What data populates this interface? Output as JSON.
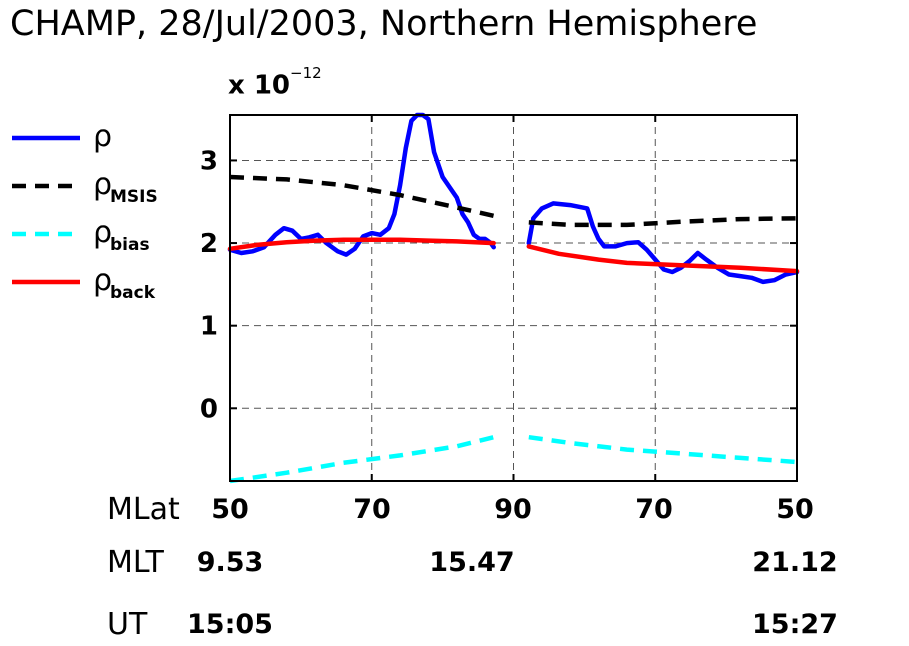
{
  "chart_data": {
    "type": "line",
    "title": "CHAMP, 28/Jul/2003, Northern Hemisphere",
    "y_multiplier": "x 10",
    "y_multiplier_exp": "−12",
    "ylim": [
      -0.88,
      3.55
    ],
    "yticks": [
      "0",
      "1",
      "2",
      "3"
    ],
    "xlim": [
      0,
      1
    ],
    "grid": true,
    "legend_position": "left",
    "legend": [
      {
        "symbol": "ρ",
        "sub": "",
        "color": "#0000ff",
        "dash": "solid"
      },
      {
        "symbol": "ρ",
        "sub": "MSIS",
        "color": "#000000",
        "dash": "dashed"
      },
      {
        "symbol": "ρ",
        "sub": "bias",
        "color": "#00ffff",
        "dash": "dashed"
      },
      {
        "symbol": "ρ",
        "sub": "back",
        "color": "#ff0000",
        "dash": "solid"
      }
    ],
    "mlat_ticks": [
      "50",
      "70",
      "90",
      "70",
      "50"
    ],
    "mlt_ticks": [
      "9.53",
      "15.47",
      "21.12"
    ],
    "ut_ticks": [
      "15:05",
      "15:27"
    ],
    "series": [
      {
        "key": "rho",
        "color": "#0000ff",
        "dash": "solid",
        "segments": [
          [
            [
              0.0,
              1.92
            ],
            [
              0.02,
              1.88
            ],
            [
              0.04,
              1.9
            ],
            [
              0.06,
              1.95
            ],
            [
              0.08,
              2.1
            ],
            [
              0.095,
              2.18
            ],
            [
              0.11,
              2.15
            ],
            [
              0.125,
              2.05
            ],
            [
              0.14,
              2.07
            ],
            [
              0.155,
              2.1
            ],
            [
              0.17,
              2.0
            ],
            [
              0.19,
              1.9
            ],
            [
              0.205,
              1.86
            ],
            [
              0.22,
              1.93
            ],
            [
              0.235,
              2.08
            ],
            [
              0.25,
              2.12
            ],
            [
              0.265,
              2.1
            ],
            [
              0.28,
              2.18
            ],
            [
              0.29,
              2.35
            ],
            [
              0.3,
              2.7
            ],
            [
              0.31,
              3.15
            ],
            [
              0.32,
              3.48
            ],
            [
              0.33,
              3.55
            ],
            [
              0.34,
              3.55
            ],
            [
              0.35,
              3.5
            ],
            [
              0.36,
              3.1
            ],
            [
              0.375,
              2.8
            ],
            [
              0.39,
              2.65
            ],
            [
              0.4,
              2.55
            ],
            [
              0.41,
              2.35
            ],
            [
              0.42,
              2.25
            ],
            [
              0.43,
              2.1
            ],
            [
              0.44,
              2.05
            ],
            [
              0.45,
              2.05
            ],
            [
              0.46,
              2.0
            ],
            [
              0.465,
              1.95
            ]
          ],
          [
            [
              0.527,
              2.0
            ],
            [
              0.535,
              2.3
            ],
            [
              0.55,
              2.42
            ],
            [
              0.57,
              2.48
            ],
            [
              0.6,
              2.46
            ],
            [
              0.63,
              2.42
            ],
            [
              0.64,
              2.2
            ],
            [
              0.65,
              2.05
            ],
            [
              0.66,
              1.96
            ],
            [
              0.68,
              1.96
            ],
            [
              0.7,
              2.0
            ],
            [
              0.72,
              2.01
            ],
            [
              0.735,
              1.92
            ],
            [
              0.75,
              1.8
            ],
            [
              0.765,
              1.68
            ],
            [
              0.78,
              1.65
            ],
            [
              0.795,
              1.7
            ],
            [
              0.81,
              1.78
            ],
            [
              0.825,
              1.88
            ],
            [
              0.84,
              1.8
            ],
            [
              0.86,
              1.7
            ],
            [
              0.88,
              1.62
            ],
            [
              0.9,
              1.6
            ],
            [
              0.92,
              1.58
            ],
            [
              0.94,
              1.53
            ],
            [
              0.96,
              1.55
            ],
            [
              0.98,
              1.62
            ],
            [
              1.0,
              1.65
            ]
          ]
        ]
      },
      {
        "key": "rho_msis",
        "color": "#000000",
        "dash": "dashed",
        "segments": [
          [
            [
              0.0,
              2.8
            ],
            [
              0.1,
              2.77
            ],
            [
              0.2,
              2.7
            ],
            [
              0.3,
              2.58
            ],
            [
              0.4,
              2.43
            ],
            [
              0.465,
              2.33
            ]
          ],
          [
            [
              0.527,
              2.25
            ],
            [
              0.6,
              2.22
            ],
            [
              0.7,
              2.22
            ],
            [
              0.8,
              2.26
            ],
            [
              0.9,
              2.29
            ],
            [
              1.0,
              2.3
            ]
          ]
        ]
      },
      {
        "key": "rho_bias",
        "color": "#00ffff",
        "dash": "dashed",
        "segments": [
          [
            [
              0.0,
              -0.88
            ],
            [
              0.1,
              -0.78
            ],
            [
              0.2,
              -0.66
            ],
            [
              0.3,
              -0.57
            ],
            [
              0.4,
              -0.46
            ],
            [
              0.465,
              -0.35
            ]
          ],
          [
            [
              0.527,
              -0.35
            ],
            [
              0.6,
              -0.42
            ],
            [
              0.7,
              -0.5
            ],
            [
              0.8,
              -0.55
            ],
            [
              0.9,
              -0.6
            ],
            [
              1.0,
              -0.65
            ]
          ]
        ]
      },
      {
        "key": "rho_back",
        "color": "#ff0000",
        "dash": "solid",
        "segments": [
          [
            [
              0.0,
              1.93
            ],
            [
              0.05,
              1.98
            ],
            [
              0.1,
              2.01
            ],
            [
              0.15,
              2.03
            ],
            [
              0.2,
              2.04
            ],
            [
              0.25,
              2.04
            ],
            [
              0.3,
              2.04
            ],
            [
              0.35,
              2.03
            ],
            [
              0.4,
              2.02
            ],
            [
              0.465,
              2.0
            ]
          ],
          [
            [
              0.527,
              1.96
            ],
            [
              0.58,
              1.87
            ],
            [
              0.65,
              1.8
            ],
            [
              0.7,
              1.76
            ],
            [
              0.8,
              1.73
            ],
            [
              0.9,
              1.7
            ],
            [
              1.0,
              1.66
            ]
          ]
        ]
      }
    ]
  }
}
